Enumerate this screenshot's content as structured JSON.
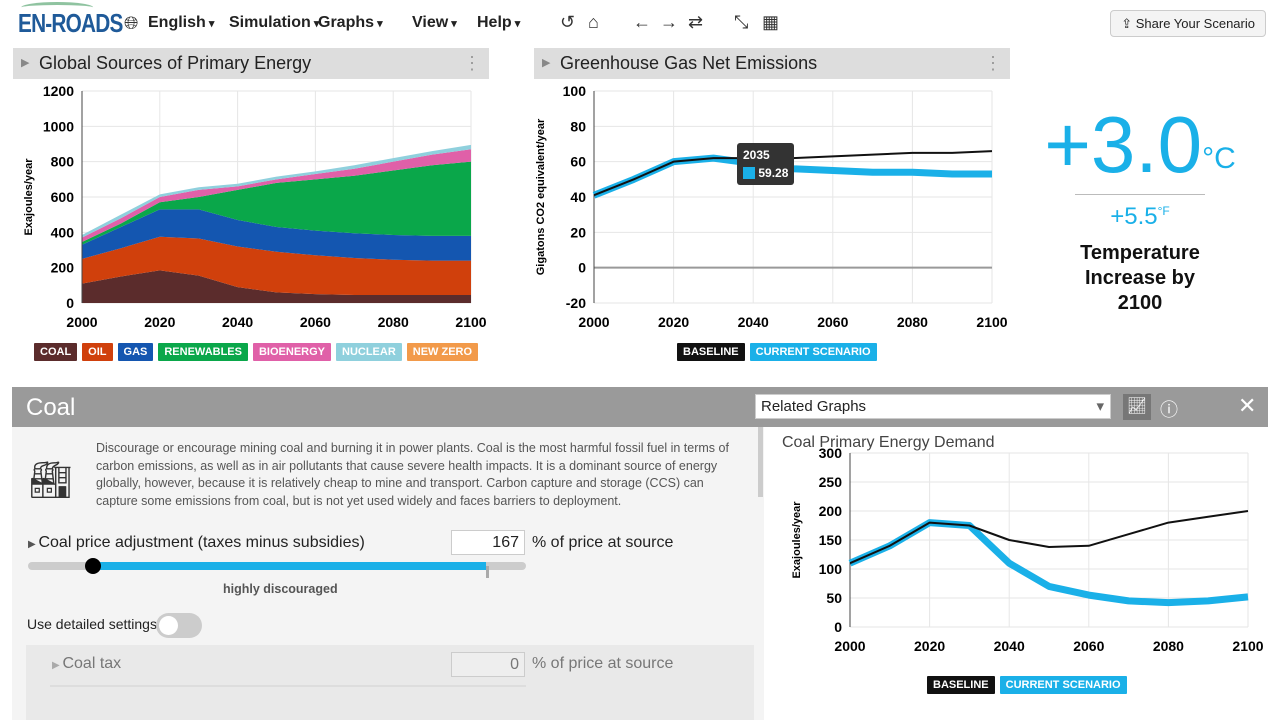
{
  "nav": {
    "logo": "EN-ROADS",
    "language": "English",
    "menus": [
      "Simulation",
      "Graphs",
      "View",
      "Help"
    ],
    "share": "Share Your Scenario"
  },
  "panel1": {
    "title": "Global Sources of Primary Energy",
    "ylabel": "Exajoules/year",
    "legend": [
      {
        "label": "COAL",
        "color": "#5b2c2c"
      },
      {
        "label": "OIL",
        "color": "#d0400c"
      },
      {
        "label": "GAS",
        "color": "#1456b0"
      },
      {
        "label": "RENEWABLES",
        "color": "#0aa74a"
      },
      {
        "label": "BIOENERGY",
        "color": "#e060a8"
      },
      {
        "label": "NUCLEAR",
        "color": "#8fd0dd"
      },
      {
        "label": "NEW ZERO",
        "color": "#f29a4a"
      }
    ]
  },
  "panel2": {
    "title": "Greenhouse Gas Net Emissions",
    "ylabel": "Gigatons CO2 equivalent/year",
    "tooltip": {
      "year": "2035",
      "value": "59.28"
    },
    "legend": [
      "BASELINE",
      "CURRENT SCENARIO"
    ]
  },
  "temperature": {
    "celsius": "+3.0",
    "c_unit": "°C",
    "fahrenheit": "+5.5",
    "f_unit": "°F",
    "label": "Temperature Increase by 2100"
  },
  "detail": {
    "title": "Coal",
    "related": "Related Graphs",
    "description": "Discourage or encourage mining coal and burning it in power plants. Coal is the most harmful fossil fuel in terms of carbon emissions, as well as in air pollutants that cause severe health impacts. It is a dominant source of energy globally, however, because it is relatively cheap to mine and transport. Carbon capture and storage (CCS) can capture some emissions from coal, but is not yet used widely and faces barriers to deployment.",
    "slider": {
      "label": "Coal price adjustment (taxes minus subsidies)",
      "value": "167",
      "unit": "% of price at source",
      "status": "highly discouraged"
    },
    "detailed_toggle": "Use detailed settings",
    "detailed_on": false,
    "sub": {
      "label": "Coal tax",
      "value": "0",
      "unit": "% of price at source"
    },
    "graph": {
      "title": "Coal Primary Energy Demand",
      "ylabel": "Exajoules/year",
      "legend": [
        "BASELINE",
        "CURRENT SCENARIO"
      ]
    }
  },
  "colors": {
    "accent": "#1ab0e8",
    "baseline": "#111111"
  },
  "chart_data": [
    {
      "type": "area",
      "title": "Global Sources of Primary Energy",
      "ylabel": "Exajoules/year",
      "x": [
        2000,
        2010,
        2020,
        2030,
        2040,
        2050,
        2060,
        2070,
        2080,
        2090,
        2100
      ],
      "ylim": [
        0,
        1200
      ],
      "yticks": [
        0,
        200,
        400,
        600,
        800,
        1000,
        1200
      ],
      "xticks": [
        2000,
        2020,
        2040,
        2060,
        2080,
        2100
      ],
      "series": [
        {
          "name": "COAL",
          "values": [
            110,
            150,
            185,
            155,
            90,
            60,
            50,
            45,
            45,
            45,
            45
          ]
        },
        {
          "name": "OIL",
          "values": [
            140,
            160,
            190,
            210,
            230,
            230,
            220,
            210,
            200,
            195,
            195
          ]
        },
        {
          "name": "GAS",
          "values": [
            80,
            120,
            155,
            165,
            150,
            140,
            140,
            140,
            140,
            140,
            140
          ]
        },
        {
          "name": "RENEWABLES",
          "values": [
            15,
            20,
            40,
            70,
            170,
            250,
            290,
            325,
            365,
            400,
            420
          ]
        },
        {
          "name": "BIOENERGY",
          "values": [
            25,
            30,
            30,
            40,
            20,
            20,
            30,
            40,
            50,
            60,
            70
          ]
        },
        {
          "name": "NUCLEAR",
          "values": [
            15,
            20,
            15,
            15,
            15,
            15,
            15,
            20,
            20,
            20,
            25
          ]
        },
        {
          "name": "NEW ZERO",
          "values": [
            0,
            0,
            0,
            0,
            0,
            0,
            0,
            0,
            0,
            0,
            0
          ]
        }
      ]
    },
    {
      "type": "line",
      "title": "Greenhouse Gas Net Emissions",
      "ylabel": "Gigatons CO2 equivalent/year",
      "x": [
        2000,
        2010,
        2020,
        2030,
        2040,
        2050,
        2060,
        2070,
        2080,
        2090,
        2100
      ],
      "ylim": [
        -20,
        100
      ],
      "yticks": [
        -20,
        0,
        20,
        40,
        60,
        80,
        100
      ],
      "xticks": [
        2000,
        2020,
        2040,
        2060,
        2080,
        2100
      ],
      "series": [
        {
          "name": "BASELINE",
          "values": [
            41,
            50,
            60,
            62,
            62,
            62,
            63,
            64,
            65,
            65,
            66
          ]
        },
        {
          "name": "CURRENT SCENARIO",
          "values": [
            41,
            50,
            60,
            62,
            59,
            56,
            55,
            54,
            54,
            53,
            53
          ]
        }
      ]
    },
    {
      "type": "line",
      "title": "Coal Primary Energy Demand",
      "ylabel": "Exajoules/year",
      "x": [
        2000,
        2010,
        2020,
        2030,
        2040,
        2050,
        2060,
        2070,
        2080,
        2090,
        2100
      ],
      "ylim": [
        0,
        300
      ],
      "yticks": [
        0,
        50,
        100,
        150,
        200,
        250,
        300
      ],
      "xticks": [
        2000,
        2020,
        2040,
        2060,
        2080,
        2100
      ],
      "series": [
        {
          "name": "BASELINE",
          "values": [
            110,
            140,
            180,
            175,
            150,
            138,
            140,
            160,
            180,
            190,
            200
          ]
        },
        {
          "name": "CURRENT SCENARIO",
          "values": [
            110,
            140,
            180,
            175,
            110,
            70,
            55,
            45,
            42,
            45,
            52
          ]
        }
      ]
    }
  ]
}
